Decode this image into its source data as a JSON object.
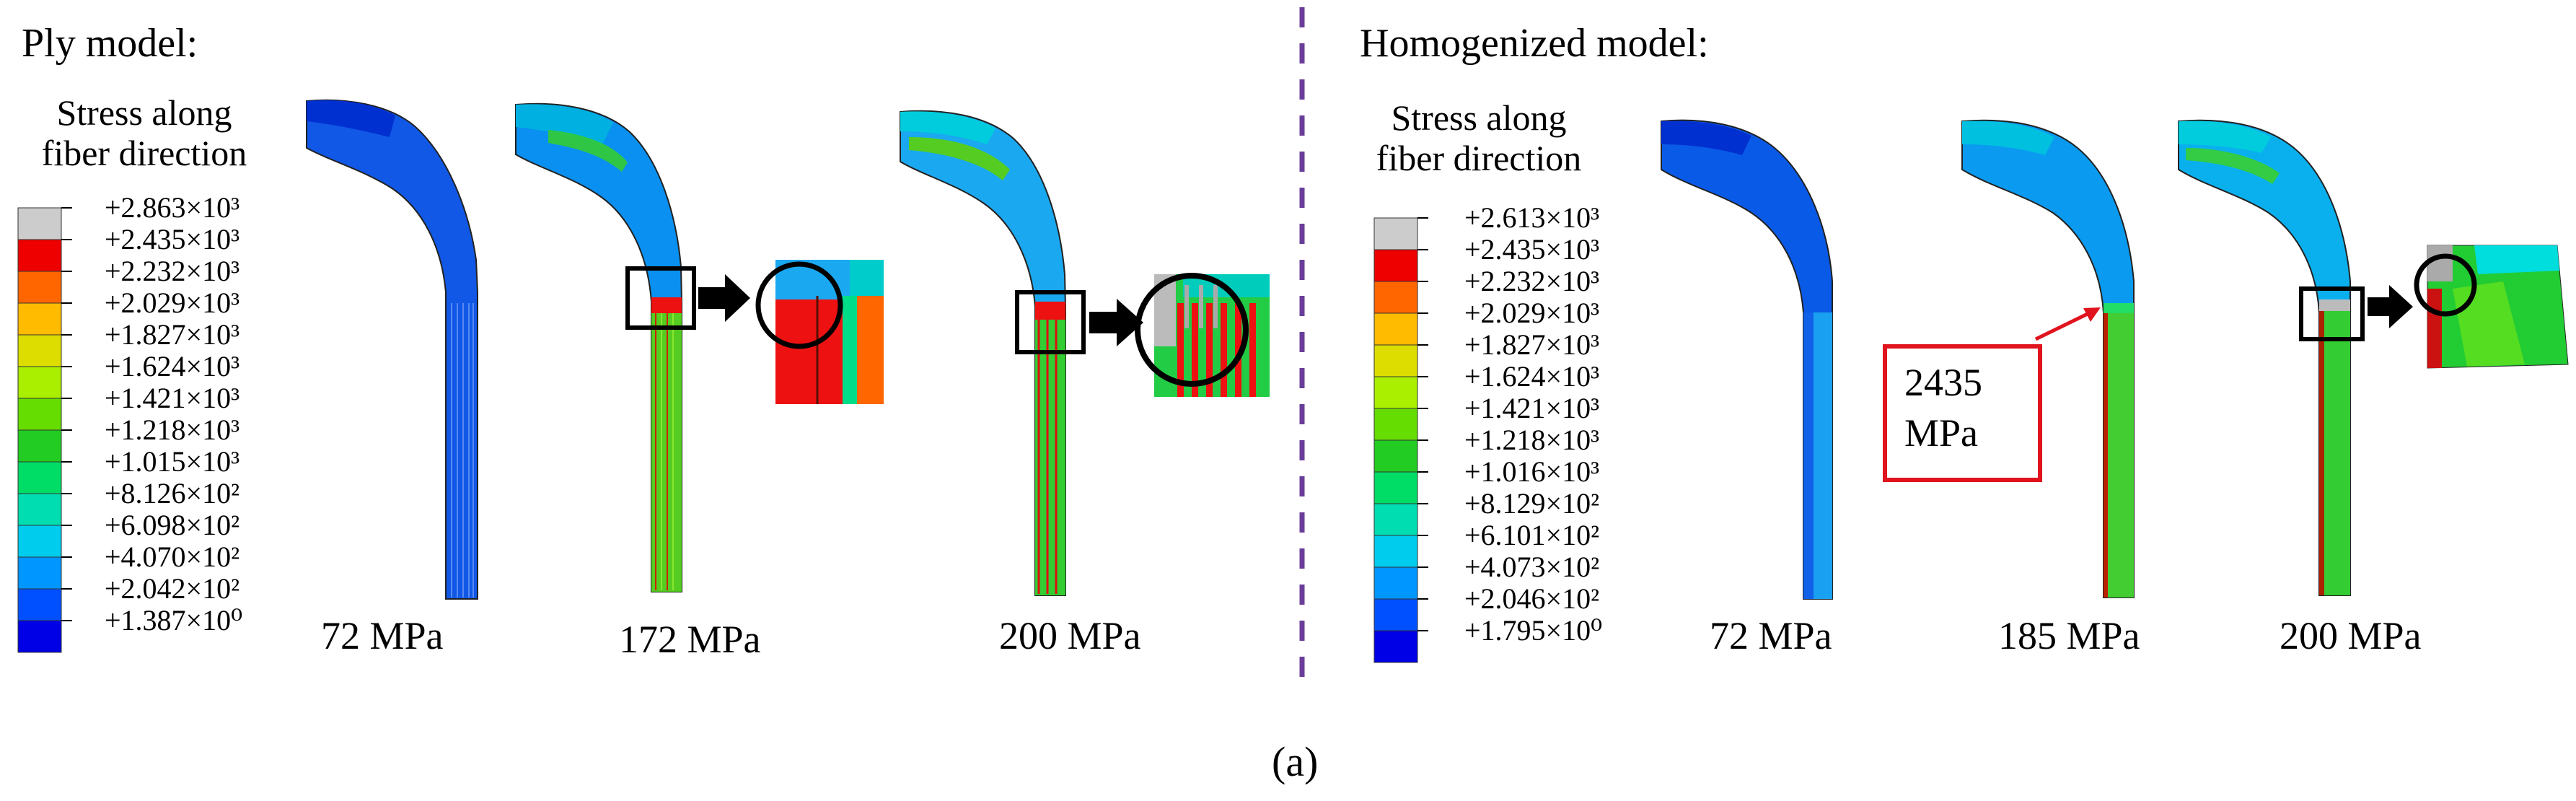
{
  "colors": {
    "divider": "#6a3d9a",
    "annotation": "#e0141e",
    "scale": [
      "#0000e6",
      "#0050ff",
      "#0096ff",
      "#00ccee",
      "#00ddb0",
      "#00dd66",
      "#22cc22",
      "#66dd00",
      "#aaee00",
      "#dddd00",
      "#ffbb00",
      "#ff6600",
      "#ee0000",
      "#cccccc"
    ]
  },
  "ply": {
    "title": "Ply model:",
    "legend_title_line1": "Stress along",
    "legend_title_line2": "fiber direction",
    "legend_labels": [
      "+2.863×10³",
      "+2.435×10³",
      "+2.232×10³",
      "+2.029×10³",
      "+1.827×10³",
      "+1.624×10³",
      "+1.421×10³",
      "+1.218×10³",
      "+1.015×10³",
      "+8.126×10²",
      "+6.098×10²",
      "+4.070×10²",
      "+2.042×10²",
      "+1.387×10⁰"
    ],
    "cases": [
      "72 MPa",
      "172 MPa",
      "200 MPa"
    ]
  },
  "homogenized": {
    "title": "Homogenized model:",
    "legend_title_line1": "Stress along",
    "legend_title_line2": "fiber direction",
    "legend_labels": [
      "+2.613×10³",
      "+2.435×10³",
      "+2.232×10³",
      "+2.029×10³",
      "+1.827×10³",
      "+1.624×10³",
      "+1.421×10³",
      "+1.218×10³",
      "+1.016×10³",
      "+8.129×10²",
      "+6.101×10²",
      "+4.073×10²",
      "+2.046×10²",
      "+1.795×10⁰"
    ],
    "cases": [
      "72 MPa",
      "185 MPa",
      "200 MPa"
    ],
    "annotation_line1": "2435",
    "annotation_line2": "MPa"
  },
  "caption": "(a)"
}
